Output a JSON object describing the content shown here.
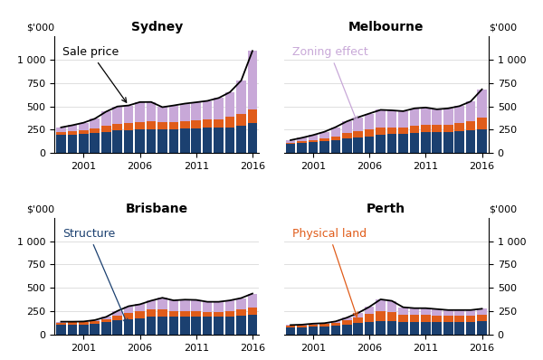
{
  "chart_data": [
    {
      "type": "bar",
      "title": "Sydney",
      "ylabel": "$'000",
      "stacked": true,
      "grid": true,
      "x": [
        1999,
        2000,
        2001,
        2002,
        2003,
        2004,
        2005,
        2006,
        2007,
        2008,
        2009,
        2010,
        2011,
        2012,
        2013,
        2014,
        2015,
        2016
      ],
      "xlim": [
        1998.4,
        2016.6
      ],
      "xticks": [
        2001,
        2006,
        2011,
        2016
      ],
      "ylim": [
        0,
        1250
      ],
      "yticks": [
        0,
        250,
        500,
        750,
        {
          "value": 1000,
          "label": "1 000"
        }
      ],
      "series": [
        {
          "color": "#1b4070",
          "values": [
            195,
            200,
            205,
            215,
            230,
            245,
            248,
            252,
            258,
            255,
            258,
            263,
            268,
            272,
            272,
            278,
            292,
            318
          ]
        },
        {
          "color": "#e05c1a",
          "values": [
            28,
            33,
            38,
            48,
            58,
            68,
            73,
            78,
            83,
            78,
            73,
            78,
            83,
            88,
            92,
            108,
            128,
            148
          ]
        },
        {
          "color": "#c8a8d8",
          "values": [
            52,
            65,
            82,
            105,
            155,
            185,
            188,
            215,
            205,
            158,
            178,
            188,
            192,
            198,
            225,
            265,
            355,
            625
          ]
        },
        {
          "type": "line",
          "color": "#000000",
          "values": [
            275,
            298,
            325,
            368,
            443,
            498,
            509,
            545,
            546,
            491,
            509,
            529,
            543,
            558,
            589,
            651,
            775,
            1091
          ]
        }
      ],
      "annotations": [
        {
          "text": "Sale price",
          "color": "#000000"
        }
      ]
    },
    {
      "type": "bar",
      "title": "Melbourne",
      "ylabel": "$'000",
      "stacked": true,
      "grid": true,
      "x": [
        1999,
        2000,
        2001,
        2002,
        2003,
        2004,
        2005,
        2006,
        2007,
        2008,
        2009,
        2010,
        2011,
        2012,
        2013,
        2014,
        2015,
        2016
      ],
      "xlim": [
        1998.4,
        2016.6
      ],
      "xticks": [
        2001,
        2006,
        2011,
        2016
      ],
      "ylim": [
        0,
        1250
      ],
      "yticks": [
        0,
        250,
        500,
        750,
        {
          "value": 1000,
          "label": "1 000"
        }
      ],
      "series": [
        {
          "color": "#1b4070",
          "values": [
            98,
            108,
            118,
            128,
            142,
            158,
            168,
            178,
            192,
            202,
            208,
            218,
            222,
            222,
            228,
            232,
            242,
            258
          ]
        },
        {
          "color": "#e05c1a",
          "values": [
            13,
            18,
            23,
            28,
            38,
            53,
            63,
            73,
            78,
            73,
            68,
            78,
            83,
            78,
            78,
            88,
            98,
            118
          ]
        },
        {
          "color": "#c8a8d8",
          "values": [
            28,
            38,
            52,
            72,
            98,
            128,
            152,
            172,
            192,
            182,
            172,
            182,
            182,
            168,
            172,
            182,
            212,
            305
          ]
        },
        {
          "type": "line",
          "color": "#000000",
          "values": [
            139,
            164,
            193,
            228,
            278,
            339,
            383,
            423,
            462,
            457,
            448,
            478,
            487,
            468,
            478,
            502,
            552,
            681
          ]
        }
      ],
      "annotations": [
        {
          "text": "Zoning effect",
          "color": "#c8a8d8"
        }
      ]
    },
    {
      "type": "bar",
      "title": "Brisbane",
      "ylabel": "$'000",
      "stacked": true,
      "grid": true,
      "x": [
        1999,
        2000,
        2001,
        2002,
        2003,
        2004,
        2005,
        2006,
        2007,
        2008,
        2009,
        2010,
        2011,
        2012,
        2013,
        2014,
        2015,
        2016
      ],
      "xlim": [
        1998.4,
        2016.6
      ],
      "xticks": [
        2001,
        2006,
        2011,
        2016
      ],
      "ylim": [
        0,
        1250
      ],
      "yticks": [
        0,
        250,
        500,
        750,
        {
          "value": 1000,
          "label": "1 000"
        }
      ],
      "series": [
        {
          "color": "#1b4070",
          "values": [
            108,
            110,
            112,
            118,
            132,
            152,
            168,
            178,
            192,
            198,
            195,
            195,
            195,
            190,
            190,
            195,
            205,
            215
          ]
        },
        {
          "color": "#e05c1a",
          "values": [
            20,
            22,
            22,
            27,
            37,
            52,
            62,
            72,
            77,
            72,
            62,
            62,
            62,
            57,
            57,
            62,
            67,
            77
          ]
        },
        {
          "color": "#c8a8d8",
          "values": [
            12,
            8,
            8,
            12,
            22,
            50,
            75,
            75,
            95,
            125,
            110,
            118,
            115,
            105,
            105,
            110,
            120,
            148
          ]
        },
        {
          "type": "line",
          "color": "#000000",
          "values": [
            140,
            140,
            142,
            157,
            191,
            254,
            305,
            325,
            364,
            395,
            367,
            375,
            372,
            352,
            352,
            367,
            392,
            440
          ]
        }
      ],
      "annotations": [
        {
          "text": "Structure",
          "color": "#1b4070"
        }
      ]
    },
    {
      "type": "bar",
      "title": "Perth",
      "ylabel": "$'000",
      "stacked": true,
      "grid": true,
      "x": [
        1999,
        2000,
        2001,
        2002,
        2003,
        2004,
        2005,
        2006,
        2007,
        2008,
        2009,
        2010,
        2011,
        2012,
        2013,
        2014,
        2015,
        2016
      ],
      "xlim": [
        1998.4,
        2016.6
      ],
      "xticks": [
        2001,
        2006,
        2011,
        2016
      ],
      "ylim": [
        0,
        1250
      ],
      "yticks": [
        0,
        250,
        500,
        750,
        {
          "value": 1000,
          "label": "1 000"
        }
      ],
      "series": [
        {
          "color": "#1b4070",
          "values": [
            78,
            82,
            88,
            93,
            102,
            112,
            122,
            132,
            142,
            142,
            138,
            138,
            138,
            138,
            138,
            138,
            138,
            142
          ]
        },
        {
          "color": "#e05c1a",
          "values": [
            18,
            18,
            23,
            23,
            28,
            43,
            63,
            88,
            108,
            98,
            78,
            73,
            73,
            68,
            63,
            63,
            63,
            68
          ]
        },
        {
          "color": "#c8a8d8",
          "values": [
            8,
            8,
            8,
            8,
            13,
            28,
            48,
            78,
            128,
            122,
            78,
            73,
            73,
            68,
            63,
            63,
            63,
            68
          ]
        },
        {
          "type": "line",
          "color": "#000000",
          "values": [
            104,
            108,
            119,
            124,
            143,
            183,
            233,
            298,
            378,
            362,
            294,
            284,
            284,
            274,
            264,
            264,
            264,
            278
          ]
        }
      ],
      "annotations": [
        {
          "text": "Physical land",
          "color": "#e05c1a"
        }
      ]
    }
  ]
}
